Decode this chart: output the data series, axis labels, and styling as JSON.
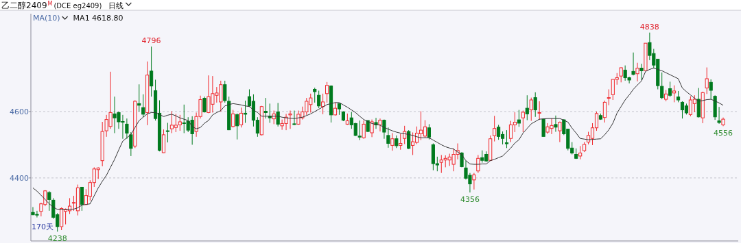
{
  "chart_data": {
    "type": "candlestick",
    "title": "乙二醇2409",
    "subtitle": "(DCE eg2409)",
    "categories": [
      null,
      null,
      null,
      null,
      null,
      null,
      null,
      null,
      null,
      null,
      null,
      null,
      null,
      null,
      null,
      null,
      null,
      null,
      null,
      null,
      null,
      null,
      null,
      null,
      null,
      null,
      null,
      null,
      null,
      null,
      null,
      null,
      null,
      null,
      null,
      null,
      null,
      null,
      null,
      null,
      null,
      null,
      null,
      null,
      null,
      null,
      null,
      null,
      null,
      null,
      null,
      null,
      null,
      null,
      null,
      null,
      null,
      null,
      null,
      null,
      null,
      null,
      null,
      null,
      null,
      null,
      null,
      null,
      null,
      null,
      null,
      null,
      null,
      null,
      null,
      null,
      null,
      null,
      null,
      null,
      null,
      null,
      null,
      null,
      null,
      null,
      null,
      null,
      null,
      null,
      null,
      null,
      null,
      null,
      null,
      null,
      null,
      null,
      null,
      null,
      null,
      null,
      null,
      null,
      null,
      null,
      null,
      null,
      null,
      null,
      null,
      null,
      null,
      null,
      null,
      null,
      null,
      null,
      null,
      null,
      null,
      null,
      null,
      null,
      null,
      null,
      null,
      null,
      null,
      null,
      null,
      null,
      null,
      null,
      null,
      null,
      null,
      null,
      null,
      null,
      null,
      null,
      null,
      null,
      null,
      null,
      null,
      null,
      null,
      null,
      null,
      null,
      null,
      null,
      null,
      null,
      null,
      null,
      null,
      null,
      null,
      null,
      null,
      null,
      null,
      null,
      null,
      null,
      null,
      null
    ],
    "ohlc": [
      [
        4296,
        4312,
        4288,
        4289
      ],
      [
        4290,
        4301,
        4281,
        4289
      ],
      [
        4299,
        4325,
        4284,
        4322
      ],
      [
        4320,
        4363,
        4315,
        4361
      ],
      [
        4356,
        4360,
        4301,
        4335
      ],
      [
        4333,
        4339,
        4277,
        4281
      ],
      [
        4289,
        4294,
        4238,
        4253
      ],
      [
        4253,
        4311,
        4243,
        4308
      ],
      [
        4299,
        4308,
        4260,
        4305
      ],
      [
        4301,
        4339,
        4291,
        4315
      ],
      [
        4324,
        4346,
        4301,
        4326
      ],
      [
        4301,
        4380,
        4287,
        4370
      ],
      [
        4372,
        4373,
        4301,
        4320
      ],
      [
        4320,
        4366,
        4318,
        4347
      ],
      [
        4344,
        4393,
        4332,
        4386
      ],
      [
        4386,
        4432,
        4373,
        4427
      ],
      [
        4425,
        4432,
        4397,
        4430
      ],
      [
        4452,
        4569,
        4435,
        4540
      ],
      [
        4542,
        4590,
        4524,
        4576
      ],
      [
        4555,
        4720,
        4548,
        4597
      ],
      [
        4593,
        4645,
        4535,
        4581
      ],
      [
        4597,
        4600,
        4548,
        4569
      ],
      [
        4570,
        4590,
        4518,
        4569
      ],
      [
        4562,
        4579,
        4518,
        4535
      ],
      [
        4530,
        4538,
        4466,
        4489
      ],
      [
        4496,
        4634,
        4490,
        4631
      ],
      [
        4624,
        4682,
        4600,
        4619
      ],
      [
        4612,
        4652,
        4583,
        4592
      ],
      [
        4597,
        4751,
        4559,
        4710
      ],
      [
        4722,
        4796,
        4645,
        4677
      ],
      [
        4663,
        4696,
        4573,
        4579
      ],
      [
        4595,
        4634,
        4480,
        4483
      ],
      [
        4476,
        4546,
        4475,
        4530
      ],
      [
        4542,
        4566,
        4507,
        4541
      ],
      [
        4548,
        4601,
        4535,
        4559
      ],
      [
        4552,
        4593,
        4538,
        4559
      ],
      [
        4560,
        4590,
        4542,
        4569
      ],
      [
        4566,
        4621,
        4535,
        4564
      ],
      [
        4571,
        4583,
        4538,
        4544
      ],
      [
        4574,
        4586,
        4500,
        4533
      ],
      [
        4540,
        4597,
        4524,
        4585
      ],
      [
        4585,
        4648,
        4579,
        4636
      ],
      [
        4640,
        4645,
        4597,
        4599
      ],
      [
        4597,
        4709,
        4595,
        4645
      ],
      [
        4622,
        4707,
        4597,
        4654
      ],
      [
        4649,
        4674,
        4627,
        4656
      ],
      [
        4629,
        4693,
        4600,
        4681
      ],
      [
        4681,
        4693,
        4627,
        4633
      ],
      [
        4631,
        4645,
        4544,
        4545
      ],
      [
        4555,
        4605,
        4552,
        4593
      ],
      [
        4591,
        4594,
        4516,
        4557
      ],
      [
        4560,
        4612,
        4552,
        4595
      ],
      [
        4595,
        4633,
        4566,
        4592
      ],
      [
        4645,
        4667,
        4614,
        4617
      ],
      [
        4631,
        4652,
        4555,
        4574
      ],
      [
        4574,
        4583,
        4524,
        4535
      ],
      [
        4530,
        4617,
        4528,
        4615
      ],
      [
        4601,
        4641,
        4579,
        4597
      ],
      [
        4586,
        4624,
        4566,
        4581
      ],
      [
        4578,
        4603,
        4562,
        4593
      ],
      [
        4599,
        4626,
        4555,
        4562
      ],
      [
        4557,
        4576,
        4545,
        4564
      ],
      [
        4564,
        4593,
        4544,
        4583
      ],
      [
        4590,
        4603,
        4548,
        4593
      ],
      [
        4563,
        4603,
        4559,
        4562
      ],
      [
        4562,
        4603,
        4560,
        4592
      ],
      [
        4581,
        4615,
        4576,
        4599
      ],
      [
        4599,
        4641,
        4590,
        4631
      ],
      [
        4621,
        4654,
        4597,
        4641
      ],
      [
        4667,
        4672,
        4627,
        4660
      ],
      [
        4649,
        4663,
        4610,
        4617
      ],
      [
        4615,
        4654,
        4592,
        4629
      ],
      [
        4654,
        4689,
        4627,
        4679
      ],
      [
        4677,
        4679,
        4567,
        4590
      ],
      [
        4590,
        4627,
        4588,
        4610
      ],
      [
        4624,
        4624,
        4590,
        4608
      ],
      [
        4599,
        4601,
        4571,
        4574
      ],
      [
        4562,
        4594,
        4560,
        4572
      ],
      [
        4581,
        4599,
        4548,
        4560
      ],
      [
        4564,
        4566,
        4526,
        4528
      ],
      [
        4526,
        4573,
        4514,
        4523
      ],
      [
        4521,
        4573,
        4518,
        4562
      ],
      [
        4573,
        4573,
        4538,
        4540
      ],
      [
        4536,
        4576,
        4523,
        4569
      ],
      [
        4567,
        4581,
        4548,
        4560
      ],
      [
        4560,
        4579,
        4540,
        4574
      ],
      [
        4574,
        4576,
        4518,
        4538
      ],
      [
        4528,
        4552,
        4491,
        4504
      ],
      [
        4498,
        4535,
        4482,
        4518
      ],
      [
        4518,
        4528,
        4490,
        4497
      ],
      [
        4498,
        4533,
        4485,
        4504
      ],
      [
        4519,
        4557,
        4502,
        4540
      ],
      [
        4540,
        4544,
        4487,
        4489
      ],
      [
        4498,
        4537,
        4469,
        4509
      ],
      [
        4507,
        4555,
        4502,
        4535
      ],
      [
        4533,
        4601,
        4514,
        4544
      ],
      [
        4526,
        4574,
        4521,
        4554
      ],
      [
        4551,
        4562,
        4516,
        4523
      ],
      [
        4500,
        4504,
        4423,
        4443
      ],
      [
        4443,
        4464,
        4420,
        4439
      ],
      [
        4447,
        4469,
        4415,
        4454
      ],
      [
        4454,
        4468,
        4432,
        4459
      ],
      [
        4454,
        4473,
        4436,
        4463
      ],
      [
        4441,
        4489,
        4420,
        4471
      ],
      [
        4471,
        4504,
        4456,
        4483
      ],
      [
        4475,
        4478,
        4432,
        4434
      ],
      [
        4430,
        4452,
        4395,
        4399
      ],
      [
        4408,
        4415,
        4356,
        4382
      ],
      [
        4394,
        4415,
        4365,
        4409
      ],
      [
        4421,
        4469,
        4415,
        4459
      ],
      [
        4461,
        4483,
        4446,
        4453
      ],
      [
        4471,
        4480,
        4449,
        4451
      ],
      [
        4453,
        4528,
        4451,
        4518
      ],
      [
        4527,
        4587,
        4510,
        4549
      ],
      [
        4553,
        4560,
        4515,
        4525
      ],
      [
        4531,
        4540,
        4501,
        4519
      ],
      [
        4506,
        4544,
        4490,
        4503
      ],
      [
        4519,
        4572,
        4508,
        4560
      ],
      [
        4560,
        4598,
        4538,
        4568
      ],
      [
        4575,
        4605,
        4554,
        4565
      ],
      [
        4581,
        4603,
        4538,
        4598
      ],
      [
        4610,
        4649,
        4574,
        4593
      ],
      [
        4605,
        4642,
        4572,
        4635
      ],
      [
        4642,
        4658,
        4584,
        4605
      ],
      [
        4595,
        4631,
        4575,
        4597
      ],
      [
        4577,
        4579,
        4525,
        4525
      ],
      [
        4538,
        4565,
        4533,
        4554
      ],
      [
        4549,
        4579,
        4532,
        4558
      ],
      [
        4561,
        4588,
        4539,
        4553
      ],
      [
        4542,
        4570,
        4508,
        4568
      ],
      [
        4575,
        4577,
        4529,
        4533
      ],
      [
        4547,
        4547,
        4483,
        4489
      ],
      [
        4490,
        4508,
        4471,
        4475
      ],
      [
        4471,
        4489,
        4457,
        4459
      ],
      [
        4466,
        4496,
        4456,
        4475
      ],
      [
        4482,
        4508,
        4478,
        4501
      ],
      [
        4508,
        4539,
        4501,
        4528
      ],
      [
        4519,
        4565,
        4499,
        4551
      ],
      [
        4551,
        4600,
        4542,
        4594
      ],
      [
        4588,
        4594,
        4575,
        4577
      ],
      [
        4582,
        4633,
        4567,
        4628
      ],
      [
        4640,
        4667,
        4619,
        4642
      ],
      [
        4651,
        4697,
        4635,
        4697
      ],
      [
        4697,
        4716,
        4681,
        4702
      ],
      [
        4707,
        4733,
        4688,
        4732
      ],
      [
        4725,
        4739,
        4693,
        4702
      ],
      [
        4702,
        4705,
        4685,
        4695
      ],
      [
        4721,
        4778,
        4709,
        4712
      ],
      [
        4714,
        4747,
        4691,
        4731
      ],
      [
        4731,
        4744,
        4695,
        4723
      ],
      [
        4723,
        4806,
        4723,
        4806
      ],
      [
        4808,
        4838,
        4755,
        4769
      ],
      [
        4775,
        4789,
        4730,
        4740
      ],
      [
        4758,
        4758,
        4667,
        4678
      ],
      [
        4676,
        4718,
        4637,
        4642
      ],
      [
        4637,
        4665,
        4631,
        4653
      ],
      [
        4669,
        4690,
        4644,
        4649
      ],
      [
        4656,
        4679,
        4628,
        4662
      ],
      [
        4644,
        4662,
        4628,
        4635
      ],
      [
        4628,
        4631,
        4579,
        4605
      ],
      [
        4617,
        4624,
        4591,
        4596
      ],
      [
        4591,
        4646,
        4586,
        4635
      ],
      [
        4624,
        4649,
        4598,
        4637
      ],
      [
        4637,
        4671,
        4582,
        4584
      ],
      [
        4581,
        4660,
        4565,
        4657
      ],
      [
        4671,
        4733,
        4653,
        4699
      ],
      [
        4688,
        4697,
        4637,
        4664
      ],
      [
        4646,
        4649,
        4575,
        4584
      ],
      [
        4572,
        4614,
        4563,
        4567
      ],
      [
        4560,
        4582,
        4556,
        4577
      ]
    ],
    "series": [
      {
        "type": "line",
        "color": "#333333",
        "values": [
          4370,
          4360,
          4348,
          4335,
          4322,
          4312,
          4305,
          4304,
          4304,
          4305,
          4306,
          4310,
          4318,
          4320,
          4322,
          4346,
          4370,
          4390,
          4408,
          4432,
          4456,
          4484,
          4511,
          4521,
          4531,
          4552,
          4573,
          4583,
          4593,
          4597,
          4597,
          4591,
          4585,
          4589,
          4592,
          4587,
          4581,
          4577,
          4573,
          4555,
          4548,
          4552,
          4565,
          4573,
          4590,
          4597,
          4603,
          4617,
          4621,
          4624,
          4622,
          4620,
          4617,
          4615,
          4605,
          4597,
          4586,
          4586,
          4586,
          4586,
          4586,
          4583,
          4581,
          4580,
          4579,
          4581,
          4583,
          4588,
          4593,
          4600,
          4607,
          4614,
          4621,
          4624,
          4627,
          4627,
          4620,
          4613,
          4605,
          4597,
          4586,
          4576,
          4570,
          4564,
          4561,
          4559,
          4552,
          4547,
          4542,
          4538,
          4535,
          4533,
          4531,
          4528,
          4524,
          4521,
          4521,
          4521,
          4514,
          4507,
          4500,
          4494,
          4490,
          4487,
          4478,
          4470,
          4452,
          4442,
          4441,
          4441,
          4442,
          4442,
          4452,
          4456,
          4461,
          4466,
          4478,
          4490,
          4505,
          4515,
          4535,
          4549,
          4563,
          4570,
          4577,
          4578,
          4579,
          4579,
          4579,
          4579,
          4574,
          4568,
          4550,
          4535,
          4519,
          4517,
          4515,
          4516,
          4517,
          4518,
          4530,
          4545,
          4565,
          4595,
          4615,
          4635,
          4650,
          4667,
          4680,
          4692,
          4721,
          4727,
          4731,
          4727,
          4723,
          4717,
          4711,
          4705,
          4699,
          4671,
          4660,
          4650,
          4640,
          4631,
          4633,
          4636,
          4637,
          4632,
          4626,
          4619
        ]
      }
    ],
    "ylim": [
      4210,
      4895
    ],
    "yticks": [
      4400,
      4600
    ],
    "grid": "y",
    "annotations": [
      "M",
      "日线",
      "MA(10)",
      "MA1 4618.80",
      "170天",
      {
        "text": "4796",
        "y": 4796
      },
      {
        "text": "4838",
        "y": 4838
      },
      {
        "text": "4238",
        "y": 4238
      },
      {
        "text": "4356",
        "y": 4356
      },
      {
        "text": "4556",
        "y": 4556
      }
    ]
  }
}
